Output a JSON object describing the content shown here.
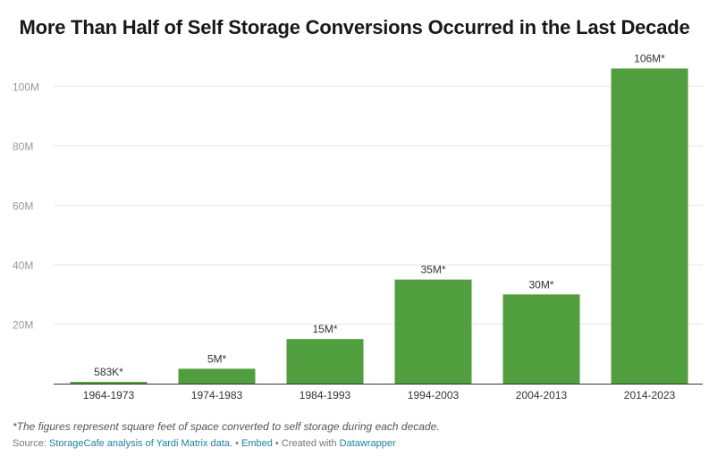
{
  "title": "More Than Half of Self Storage Conversions Occurred in the Last Decade",
  "footnote": "*The figures represent square feet of space converted to self storage during each decade.",
  "footer": {
    "source_label": "Source:",
    "source_link": "StorageCafe analysis of Yardi Matrix data.",
    "embed_label": "Embed",
    "created_label": "Created with",
    "created_link": "Datawrapper",
    "separator": "•"
  },
  "colors": {
    "bar": "#519e3e",
    "grid": "#e6e6e6",
    "axis": "#333333",
    "tick_text": "#999999",
    "link": "#1d81a2"
  },
  "chart_data": {
    "type": "bar",
    "title": "More Than Half of Self Storage Conversions Occurred in the Last Decade",
    "xlabel": "",
    "ylabel": "",
    "categories": [
      "1964-1973",
      "1974-1983",
      "1984-1993",
      "1994-2003",
      "2004-2013",
      "2014-2023"
    ],
    "values": [
      583000,
      5000000,
      15000000,
      35000000,
      30000000,
      106000000
    ],
    "data_labels": [
      "583K*",
      "5M*",
      "15M*",
      "35M*",
      "30M*",
      "106M*"
    ],
    "ylim": [
      0,
      106000000
    ],
    "yticks": [
      20000000,
      40000000,
      60000000,
      80000000,
      100000000
    ],
    "ytick_labels": [
      "20M",
      "40M",
      "60M",
      "80M",
      "100M"
    ],
    "grid": true,
    "legend": "none"
  }
}
